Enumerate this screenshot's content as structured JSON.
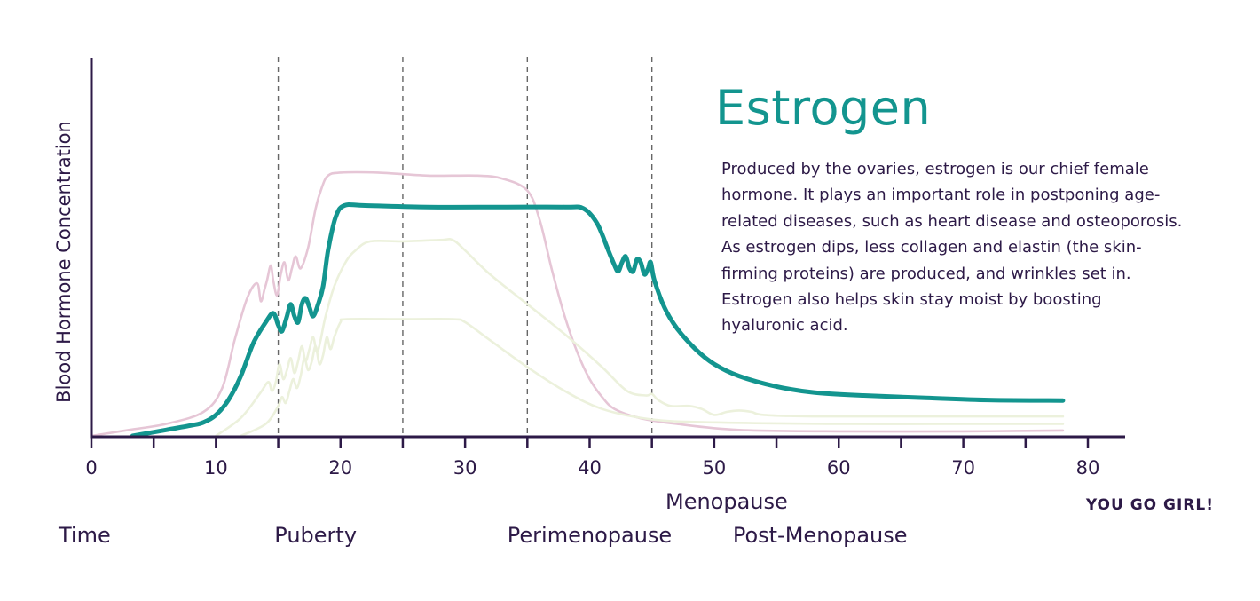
{
  "chart_data": {
    "type": "line",
    "title": "Estrogen",
    "description": "Produced by the ovaries, estrogen is our chief female hormone. It plays an important role in postponing age-related diseases, such as heart disease and osteoporosis. As estrogen dips, less collagen and elastin (the skin-firming proteins) are produced, and wrinkles set in. Estrogen also helps skin stay moist by boosting hyaluronic acid.",
    "ylabel": "Blood Hormone Concentration",
    "xlabel": "Time",
    "xlim": [
      0,
      83
    ],
    "ylim": [
      0,
      100
    ],
    "xticks": [
      0,
      10,
      20,
      30,
      40,
      50,
      60,
      70,
      80
    ],
    "minor_xticks": [
      5,
      15,
      25,
      35,
      45,
      55,
      65,
      75
    ],
    "dashed_lines": [
      15,
      25,
      35,
      45
    ],
    "stages": [
      {
        "label": "Puberty",
        "x": 18,
        "row": "low"
      },
      {
        "label": "Perimenopause",
        "x": 40,
        "row": "low"
      },
      {
        "label": "Menopause",
        "x": 51,
        "row": "high"
      },
      {
        "label": "Post-Menopause",
        "x": 58.5,
        "row": "low"
      }
    ],
    "slogan": "YOU GO GIRL!",
    "series": [
      {
        "role": "background",
        "color": "#e6c6d6",
        "points": [
          [
            0,
            0
          ],
          [
            3,
            2
          ],
          [
            6,
            4
          ],
          [
            9,
            8
          ],
          [
            10.5,
            16
          ],
          [
            11.5,
            32
          ],
          [
            12.5,
            46
          ],
          [
            13.3,
            51
          ],
          [
            13.6,
            45
          ],
          [
            13.9,
            49
          ],
          [
            14.1,
            52
          ],
          [
            14.4,
            57
          ],
          [
            14.6,
            52
          ],
          [
            14.9,
            47
          ],
          [
            15.2,
            54
          ],
          [
            15.5,
            58
          ],
          [
            15.8,
            52
          ],
          [
            16.1,
            56
          ],
          [
            16.4,
            60
          ],
          [
            16.8,
            56
          ],
          [
            17.4,
            63
          ],
          [
            18,
            76
          ],
          [
            18.5,
            83
          ],
          [
            19,
            87
          ],
          [
            20,
            88
          ],
          [
            23,
            88
          ],
          [
            27,
            87
          ],
          [
            31,
            87
          ],
          [
            33,
            86
          ],
          [
            35,
            82
          ],
          [
            36,
            72
          ],
          [
            37,
            55
          ],
          [
            38,
            40
          ],
          [
            39,
            28
          ],
          [
            40,
            19
          ],
          [
            41,
            13
          ],
          [
            42,
            9
          ],
          [
            44,
            6
          ],
          [
            47,
            4
          ],
          [
            52,
            2
          ],
          [
            60,
            1.5
          ],
          [
            70,
            1.5
          ],
          [
            78,
            1.8
          ]
        ]
      },
      {
        "role": "main",
        "name": "Estrogen",
        "color": "#13958f",
        "points": [
          [
            3.3,
            0
          ],
          [
            6,
            2
          ],
          [
            8,
            3.5
          ],
          [
            9,
            4.5
          ],
          [
            10,
            7
          ],
          [
            11,
            12
          ],
          [
            12,
            20
          ],
          [
            13,
            31
          ],
          [
            14,
            38
          ],
          [
            14.6,
            41
          ],
          [
            15,
            37
          ],
          [
            15.3,
            35
          ],
          [
            15.7,
            40
          ],
          [
            16,
            44
          ],
          [
            16.3,
            40
          ],
          [
            16.6,
            38
          ],
          [
            16.9,
            44
          ],
          [
            17.2,
            46
          ],
          [
            17.5,
            43
          ],
          [
            17.8,
            40
          ],
          [
            18.2,
            44
          ],
          [
            18.6,
            50
          ],
          [
            19,
            62
          ],
          [
            19.6,
            73
          ],
          [
            20.3,
            77
          ],
          [
            22,
            77
          ],
          [
            27,
            76.5
          ],
          [
            33,
            76.5
          ],
          [
            38,
            76.5
          ],
          [
            39.5,
            76
          ],
          [
            40.6,
            71
          ],
          [
            41.5,
            62
          ],
          [
            42,
            57
          ],
          [
            42.3,
            55
          ],
          [
            42.6,
            58
          ],
          [
            42.9,
            60
          ],
          [
            43.2,
            56
          ],
          [
            43.5,
            55
          ],
          [
            43.8,
            59
          ],
          [
            44.1,
            58
          ],
          [
            44.4,
            54
          ],
          [
            44.7,
            56
          ],
          [
            44.9,
            58
          ],
          [
            45.2,
            52
          ],
          [
            46,
            43
          ],
          [
            47,
            36
          ],
          [
            48.5,
            29
          ],
          [
            50,
            24
          ],
          [
            52,
            20
          ],
          [
            55,
            16.5
          ],
          [
            58,
            14.5
          ],
          [
            62,
            13.5
          ],
          [
            67,
            12.7
          ],
          [
            72,
            12
          ],
          [
            78,
            11.8
          ]
        ]
      },
      {
        "role": "background",
        "color": "#ecf1dc",
        "points": [
          [
            10,
            0
          ],
          [
            12,
            6
          ],
          [
            13.5,
            14
          ],
          [
            14.2,
            18
          ],
          [
            14.5,
            15
          ],
          [
            14.8,
            18
          ],
          [
            15.1,
            24
          ],
          [
            15.4,
            19
          ],
          [
            15.7,
            22
          ],
          [
            16,
            26
          ],
          [
            16.3,
            21
          ],
          [
            16.6,
            25
          ],
          [
            16.9,
            30
          ],
          [
            17.2,
            25
          ],
          [
            17.5,
            29
          ],
          [
            17.8,
            33
          ],
          [
            18.1,
            28
          ],
          [
            18.4,
            32
          ],
          [
            18.8,
            40
          ],
          [
            19.5,
            50
          ],
          [
            20.4,
            58
          ],
          [
            21.2,
            62
          ],
          [
            22.4,
            65
          ],
          [
            25,
            65
          ],
          [
            28,
            65.5
          ],
          [
            29,
            65.5
          ],
          [
            30,
            62
          ],
          [
            32,
            54
          ],
          [
            35,
            44
          ],
          [
            38,
            34
          ],
          [
            41,
            23
          ],
          [
            43,
            15
          ],
          [
            44.5,
            13.5
          ],
          [
            45,
            14
          ],
          [
            45.5,
            12
          ],
          [
            46.5,
            10
          ],
          [
            48,
            10
          ],
          [
            49,
            9
          ],
          [
            50,
            7
          ],
          [
            51,
            8
          ],
          [
            52,
            8.5
          ],
          [
            53,
            8
          ],
          [
            54,
            7
          ],
          [
            58,
            6.5
          ],
          [
            65,
            6.5
          ],
          [
            78,
            6.5
          ]
        ]
      },
      {
        "role": "background",
        "color": "#ecf1dc",
        "points": [
          [
            12,
            0
          ],
          [
            14,
            4
          ],
          [
            15,
            10
          ],
          [
            15.3,
            13
          ],
          [
            15.6,
            11
          ],
          [
            15.9,
            15
          ],
          [
            16.2,
            19
          ],
          [
            16.5,
            16
          ],
          [
            16.8,
            20
          ],
          [
            17.1,
            26
          ],
          [
            17.4,
            22
          ],
          [
            17.7,
            25
          ],
          [
            18,
            30
          ],
          [
            18.3,
            24
          ],
          [
            18.6,
            27
          ],
          [
            18.9,
            33
          ],
          [
            19.2,
            29
          ],
          [
            19.5,
            33
          ],
          [
            20,
            38
          ],
          [
            20.5,
            39
          ],
          [
            25,
            39
          ],
          [
            29,
            39
          ],
          [
            30,
            38
          ],
          [
            32,
            32
          ],
          [
            35,
            23
          ],
          [
            38,
            15
          ],
          [
            41,
            9
          ],
          [
            45,
            5.5
          ],
          [
            50,
            4.5
          ],
          [
            60,
            4
          ],
          [
            70,
            4
          ],
          [
            78,
            4
          ]
        ]
      }
    ]
  }
}
